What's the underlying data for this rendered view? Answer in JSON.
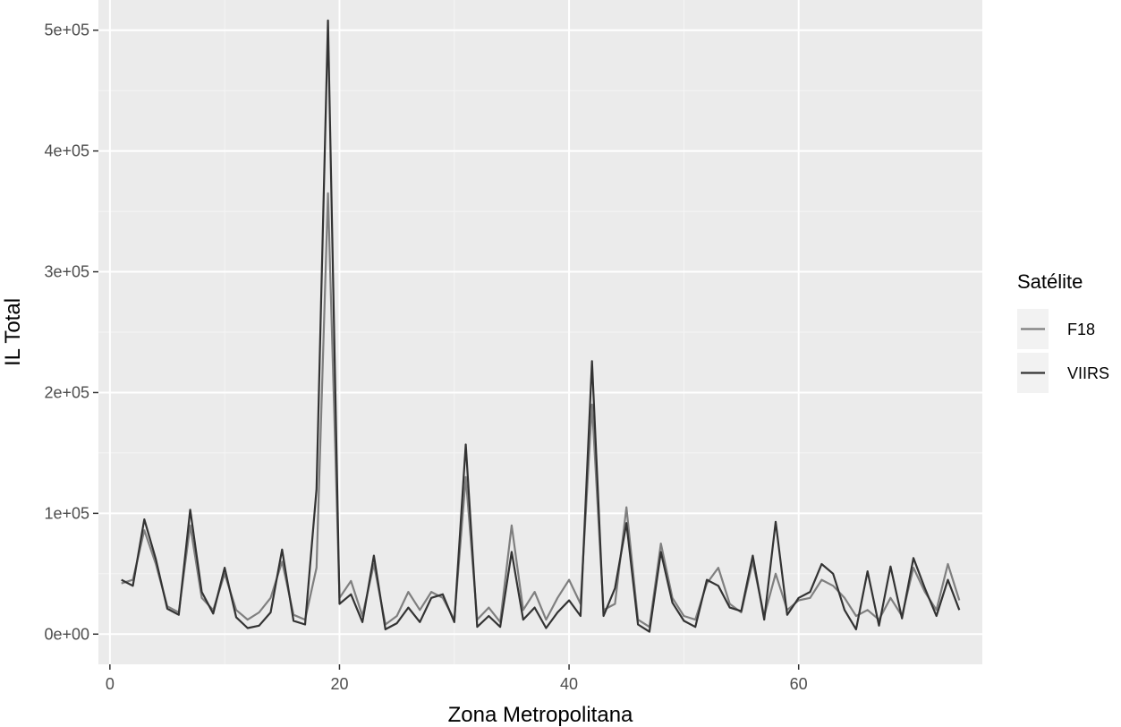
{
  "chart_data": {
    "type": "line",
    "xlabel": "Zona Metropolitana",
    "ylabel": "IL Total",
    "xlim": [
      -1,
      76
    ],
    "ylim": [
      -25000,
      525000
    ],
    "x_ticks": [
      0,
      20,
      40,
      60
    ],
    "x_tick_labels": [
      "0",
      "20",
      "40",
      "60"
    ],
    "y_ticks": [
      0,
      100000,
      200000,
      300000,
      400000,
      500000
    ],
    "y_tick_labels": [
      "0e+00",
      "1e+05",
      "2e+05",
      "3e+05",
      "4e+05",
      "5e+05"
    ],
    "grid": true,
    "legend": {
      "title": "Satélite",
      "position": "right"
    },
    "x": [
      1,
      2,
      3,
      4,
      5,
      6,
      7,
      8,
      9,
      10,
      11,
      12,
      13,
      14,
      15,
      16,
      17,
      18,
      19,
      20,
      21,
      22,
      23,
      24,
      25,
      26,
      27,
      28,
      29,
      30,
      31,
      32,
      33,
      34,
      35,
      36,
      37,
      38,
      39,
      40,
      41,
      42,
      43,
      44,
      45,
      46,
      47,
      48,
      49,
      50,
      51,
      52,
      53,
      54,
      55,
      56,
      57,
      58,
      59,
      60,
      61,
      62,
      63,
      64,
      65,
      66,
      67,
      68,
      69,
      70,
      71,
      72,
      73,
      74
    ],
    "series": [
      {
        "name": "F18",
        "color": "#7f7f7f",
        "values": [
          42000,
          45000,
          86000,
          58000,
          23000,
          18000,
          90000,
          30000,
          20000,
          50000,
          20000,
          12000,
          18000,
          30000,
          60000,
          16000,
          12000,
          55000,
          365000,
          30000,
          44000,
          15000,
          58000,
          8000,
          15000,
          35000,
          20000,
          35000,
          30000,
          12000,
          130000,
          12000,
          22000,
          10000,
          90000,
          20000,
          35000,
          12000,
          30000,
          45000,
          25000,
          190000,
          20000,
          25000,
          105000,
          12000,
          6000,
          75000,
          30000,
          15000,
          12000,
          42000,
          55000,
          25000,
          18000,
          60000,
          15000,
          50000,
          20000,
          28000,
          30000,
          45000,
          40000,
          30000,
          15000,
          20000,
          12000,
          30000,
          15000,
          55000,
          35000,
          20000,
          58000,
          28000
        ]
      },
      {
        "name": "VIIRS",
        "color": "#333333",
        "values": [
          45000,
          40000,
          95000,
          62000,
          21000,
          16000,
          103000,
          35000,
          17000,
          55000,
          14000,
          5000,
          7000,
          18000,
          70000,
          11000,
          8000,
          120000,
          508000,
          25000,
          33000,
          10000,
          65000,
          4000,
          9000,
          22000,
          10000,
          30000,
          33000,
          10000,
          157000,
          6000,
          15000,
          6000,
          68000,
          12000,
          22000,
          5000,
          18000,
          28000,
          15000,
          226000,
          15000,
          38000,
          92000,
          8000,
          2000,
          68000,
          26000,
          11000,
          6000,
          45000,
          40000,
          22000,
          19000,
          65000,
          12000,
          93000,
          16000,
          30000,
          35000,
          58000,
          50000,
          20000,
          4000,
          52000,
          7000,
          56000,
          13000,
          63000,
          38000,
          15000,
          45000,
          20000
        ]
      }
    ]
  }
}
